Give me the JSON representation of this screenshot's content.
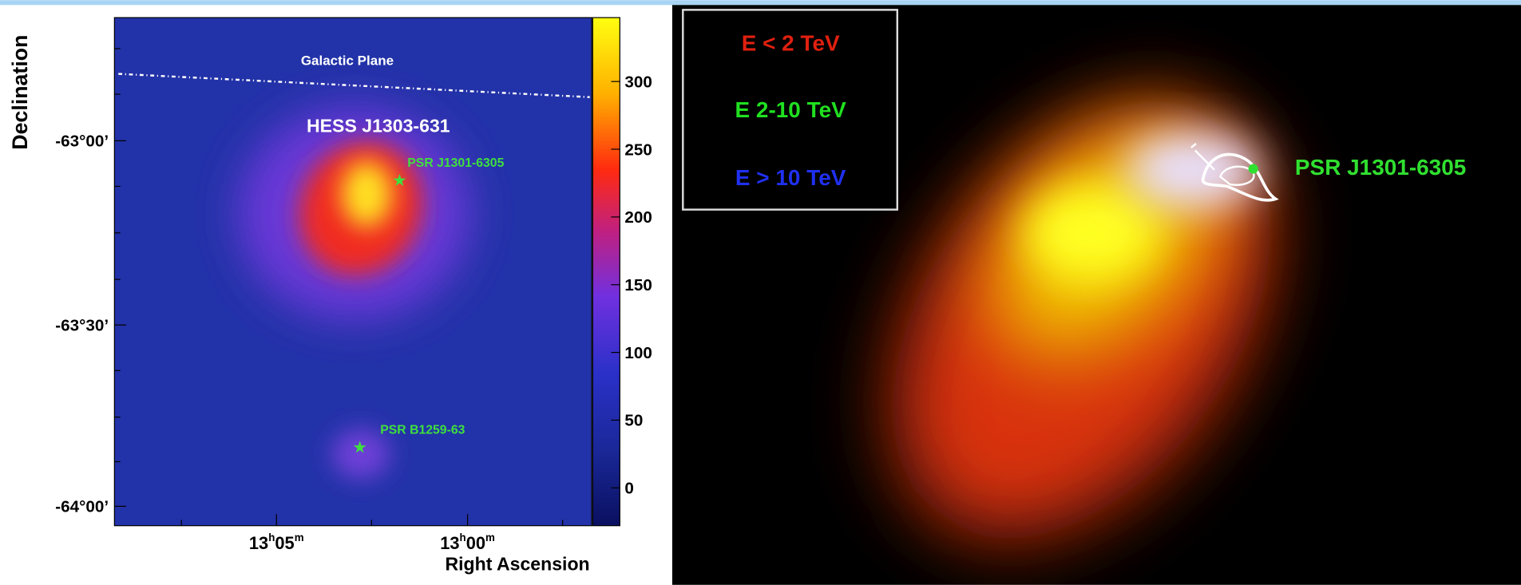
{
  "left_panel": {
    "y_axis_label": "Declination",
    "x_axis_label": "Right Ascension",
    "y_ticks": [
      "-63°00’",
      "-63°30’",
      "-64°00’"
    ],
    "x_ticks": [
      {
        "hours": "13",
        "h": "h",
        "minutes": "05",
        "m": "m"
      },
      {
        "hours": "13",
        "h": "h",
        "minutes": "00",
        "m": "m"
      }
    ],
    "colorbar_ticks": [
      300,
      250,
      200,
      150,
      100,
      50,
      0
    ],
    "annotations": {
      "galactic_plane": "Galactic Plane",
      "source": "HESS J1303-631",
      "pulsar_1": "PSR J1301-6305",
      "pulsar_2": "PSR B1259-63"
    }
  },
  "right_panel": {
    "legend": [
      "E < 2 TeV",
      "E 2-10 TeV",
      "E > 10 TeV"
    ],
    "pulsar": "PSR J1301-6305"
  }
}
